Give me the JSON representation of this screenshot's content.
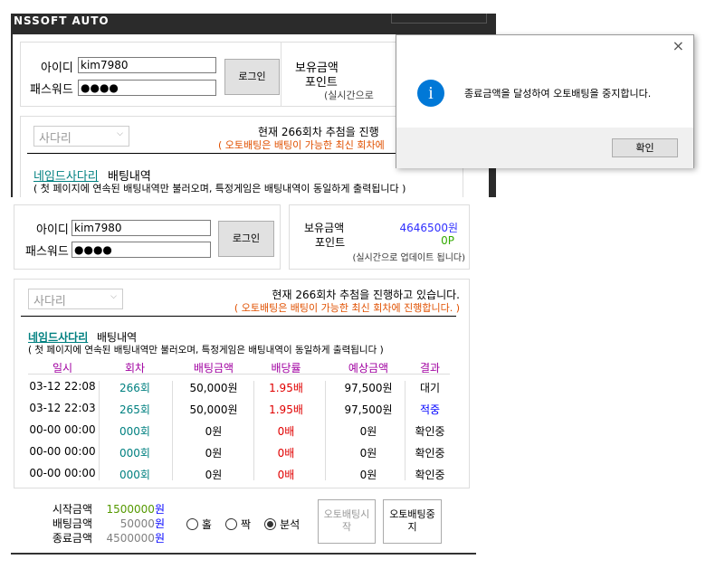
{
  "window": {
    "title": "NSSOFT AUTO"
  },
  "login": {
    "id_label": "아이디",
    "id_value": "kim7980",
    "pw_label": "패스워드",
    "pw_value": "●●●●",
    "login_button": "로그인"
  },
  "balance": {
    "balance_label": "보유금액",
    "balance_value": "4646500원",
    "point_label": "포인트",
    "point_value": "0P",
    "note": "(실시간으로 업데이트 됩니다)",
    "note_partial": "(실시간으로"
  },
  "game": {
    "select_value": "사다리",
    "status": "현재 266회차 추첨을 진행하고 있습니다.",
    "status_partial": "현재 266회차 추첨을 진행",
    "notice": "( 오토배팅은 배팅이 가능한 최신 회차에 진행합니다. )",
    "notice_partial": "( 오토배팅은 배팅이 가능한 최신 회차에",
    "history_link": "네임드사다리",
    "history_title": "배팅내역",
    "history_note": "( 첫 페이지에 연속된 배팅내역만 불러오며, 특정게임은 배팅내역이 동일하게 출력됩니다 )",
    "columns": [
      "일시",
      "회차",
      "배팅금액",
      "배당률",
      "예상금액",
      "결과"
    ],
    "rows": [
      [
        "03-12 22:08",
        "266회",
        "50,000원",
        "1.95배",
        "97,500원",
        "대기"
      ],
      [
        "03-12 22:03",
        "265회",
        "50,000원",
        "1.95배",
        "97,500원",
        "적중"
      ],
      [
        "00-00 00:00",
        "000회",
        "0원",
        "0배",
        "0원",
        "확인중"
      ],
      [
        "00-00 00:00",
        "000회",
        "0원",
        "0배",
        "0원",
        "확인중"
      ],
      [
        "00-00 00:00",
        "000회",
        "0원",
        "0배",
        "0원",
        "확인중"
      ]
    ]
  },
  "settings": {
    "start_label": "시작금액",
    "start_value": "1500000",
    "bet_label": "배팅금액",
    "bet_value": "50000",
    "end_label": "종료금액",
    "end_value": "4500000",
    "won": "원",
    "options": [
      "홀",
      "짝",
      "분석"
    ],
    "selected_option": "분석",
    "start_button": "오토배팅시작",
    "stop_button": "오토배팅중지"
  },
  "dialog": {
    "message": "종료금액을 달성하여 오토배팅을 중지합니다.",
    "ok_button": "확인",
    "icon": "info-icon"
  },
  "colors": {
    "accent": "#0078d7",
    "teal": "#008080",
    "red": "#e00000",
    "orange": "#e05000",
    "purple": "#a000a0"
  }
}
